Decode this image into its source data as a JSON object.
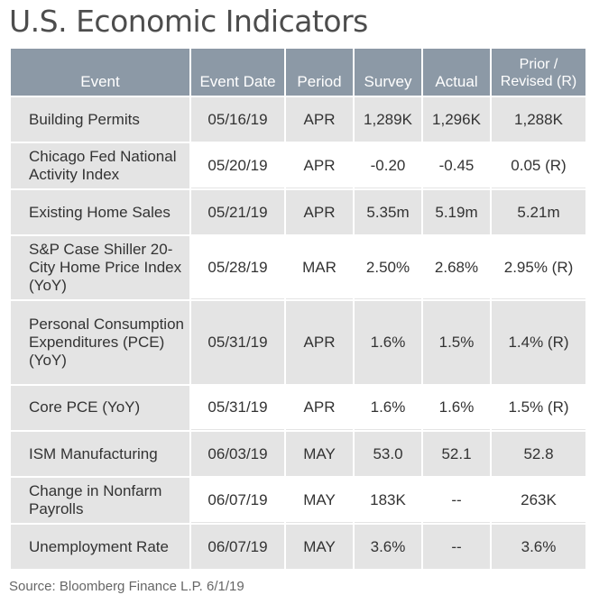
{
  "title": "U.S. Economic Indicators",
  "headers": {
    "event": "Event",
    "event_date": "Event Date",
    "period": "Period",
    "survey": "Survey",
    "actual": "Actual",
    "prior_line1": "Prior /",
    "prior_line2": "Revised (R)"
  },
  "rows": [
    {
      "event": "Building Permits",
      "date": "05/16/19",
      "period": "APR",
      "survey": "1,289K",
      "actual": "1,296K",
      "prior": "1,288K"
    },
    {
      "event": "Chicago Fed National Activity Index",
      "date": "05/20/19",
      "period": "APR",
      "survey": "-0.20",
      "actual": "-0.45",
      "prior": "0.05 (R)"
    },
    {
      "event": "Existing Home Sales",
      "date": "05/21/19",
      "period": "APR",
      "survey": "5.35m",
      "actual": "5.19m",
      "prior": "5.21m"
    },
    {
      "event": "S&P Case Shiller 20-City Home Price Index (YoY)",
      "date": "05/28/19",
      "period": "MAR",
      "survey": "2.50%",
      "actual": "2.68%",
      "prior": "2.95% (R)"
    },
    {
      "event": "Personal Consumption Expenditures (PCE) (YoY)",
      "date": "05/31/19",
      "period": "APR",
      "survey": "1.6%",
      "actual": "1.5%",
      "prior": "1.4% (R)"
    },
    {
      "event": "Core PCE (YoY)",
      "date": "05/31/19",
      "period": "APR",
      "survey": "1.6%",
      "actual": "1.6%",
      "prior": "1.5% (R)"
    },
    {
      "event": "ISM Manufacturing",
      "date": "06/03/19",
      "period": "MAY",
      "survey": "53.0",
      "actual": "52.1",
      "prior": "52.8"
    },
    {
      "event": "Change in Nonfarm Payrolls",
      "date": "06/07/19",
      "period": "MAY",
      "survey": "183K",
      "actual": "--",
      "prior": "263K"
    },
    {
      "event": "Unemployment Rate",
      "date": "06/07/19",
      "period": "MAY",
      "survey": "3.6%",
      "actual": "--",
      "prior": "3.6%"
    }
  ],
  "source": "Source: Bloomberg Finance L.P. 6/1/19"
}
